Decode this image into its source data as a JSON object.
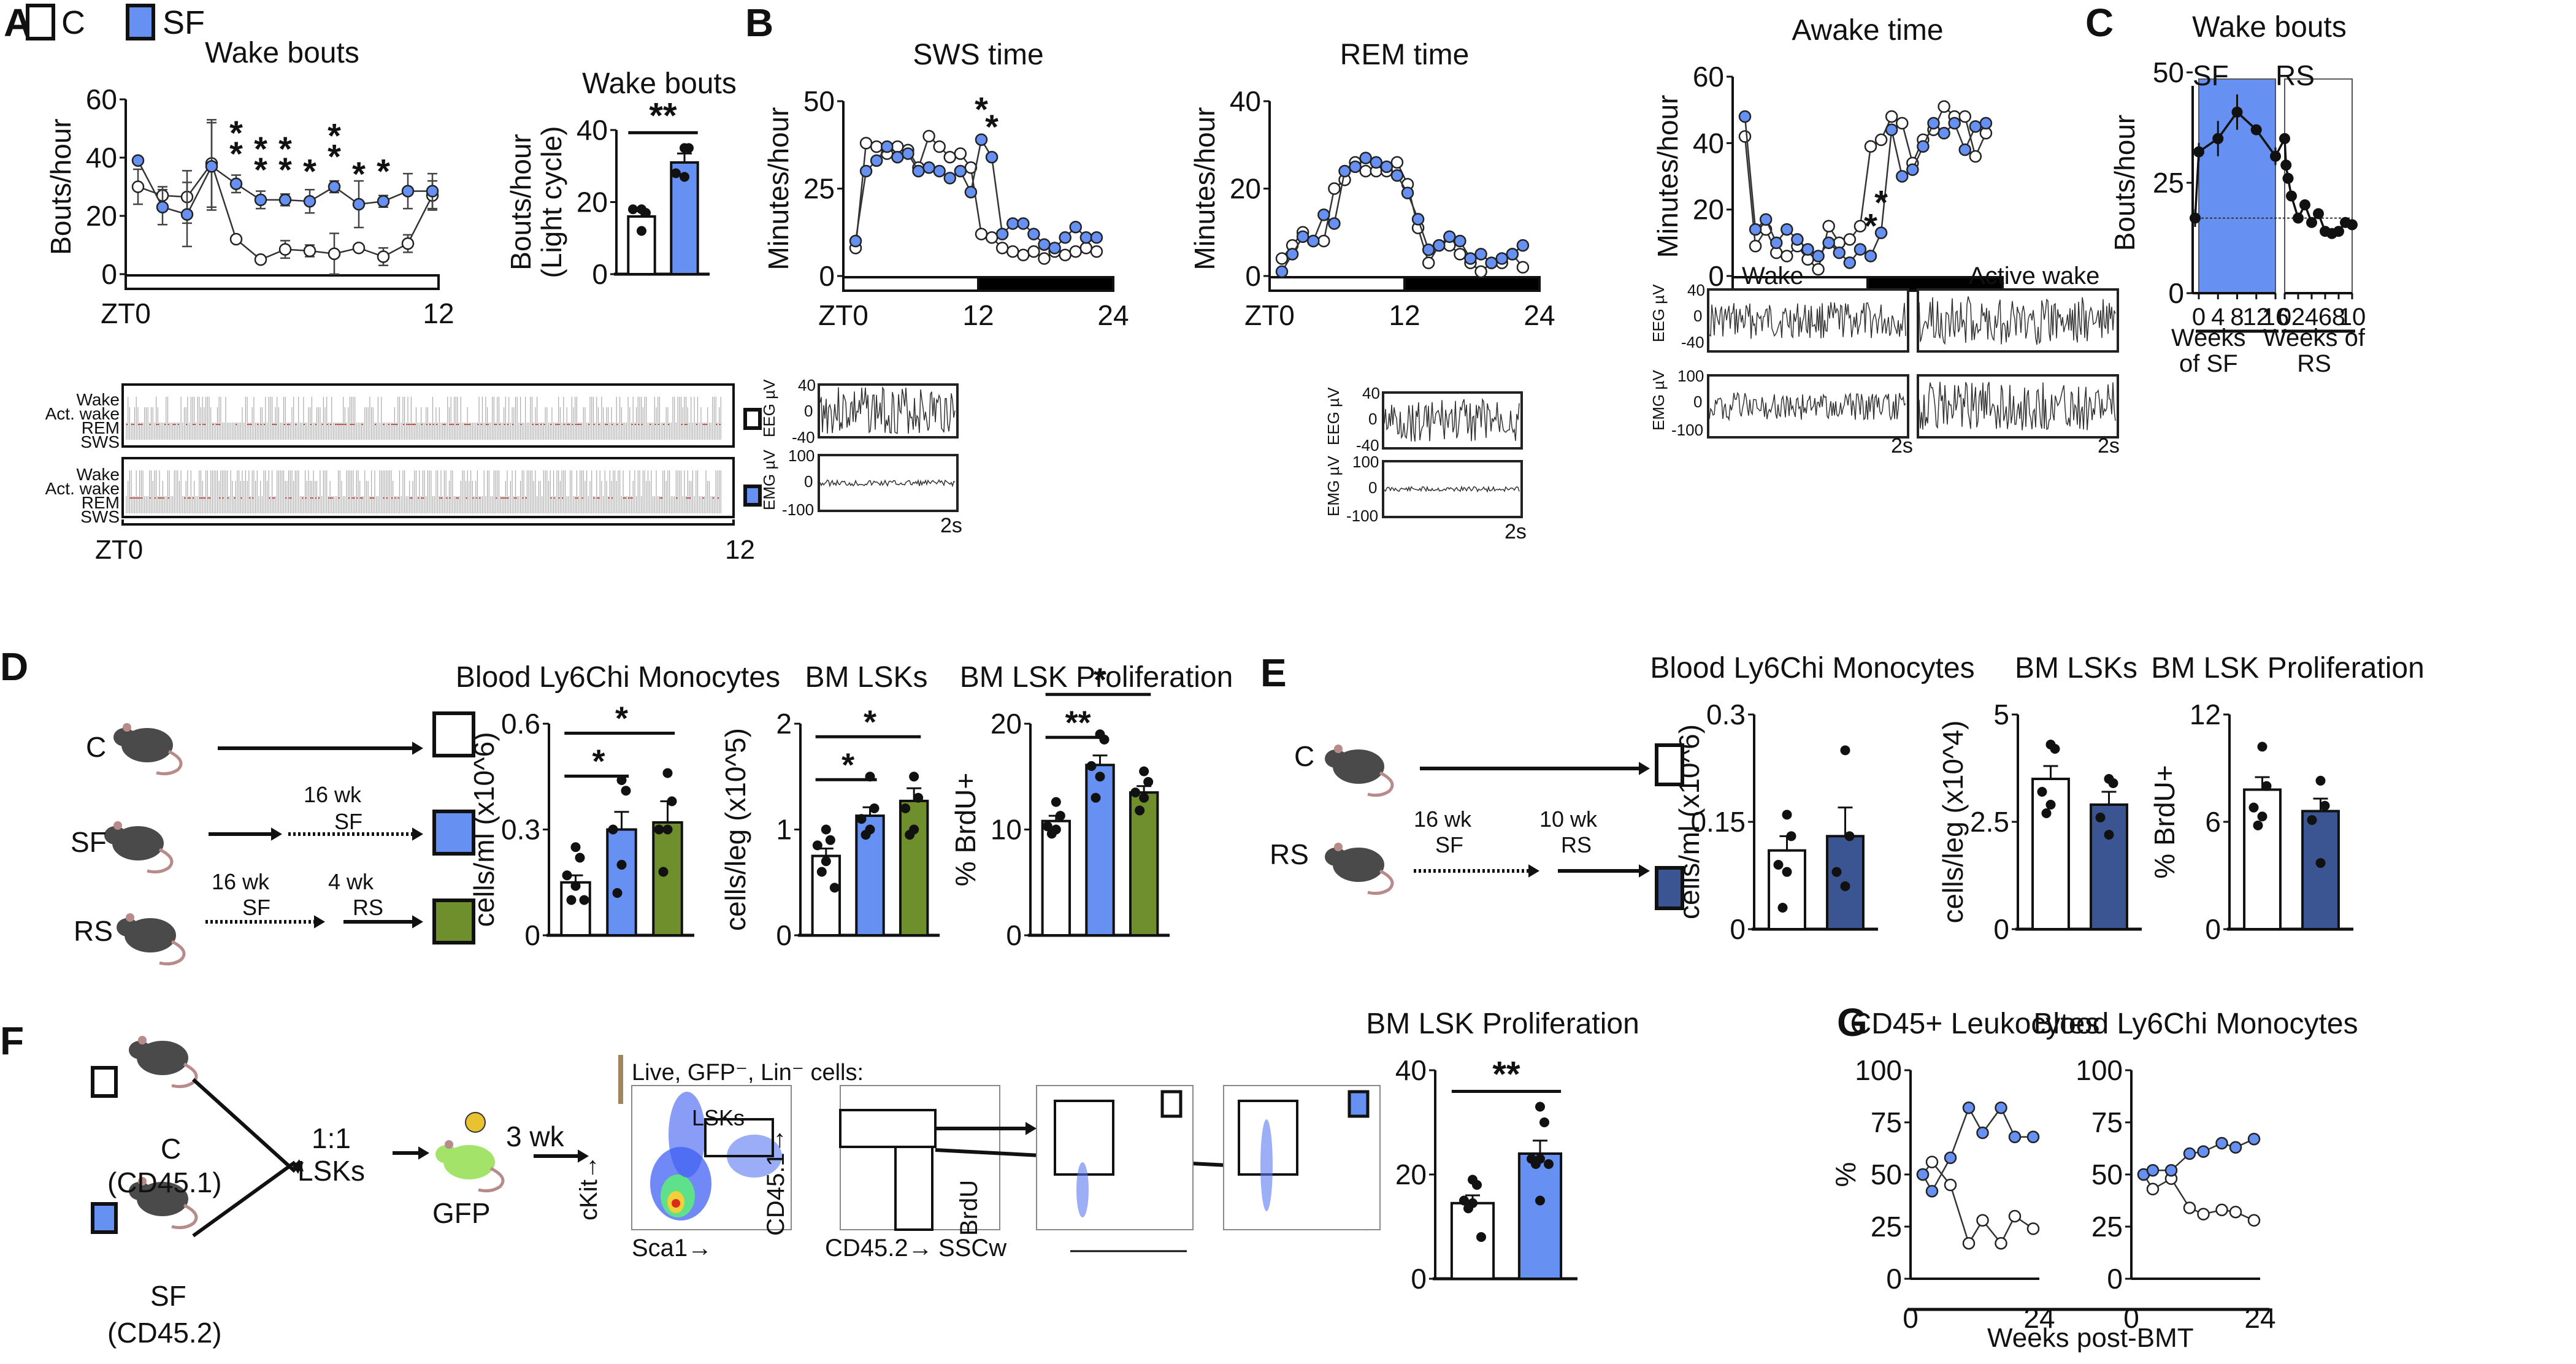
{
  "colors": {
    "control": "#ffffff",
    "sf": "#6690f2",
    "rs_green": "#6e8f2c",
    "rs_navy": "#3b5592",
    "axis": "#111111",
    "trace": "#333333",
    "rem_mark": "#c0392b"
  },
  "panels": {
    "A": {
      "label": "A",
      "legend": [
        {
          "name": "C",
          "color": "#ffffff"
        },
        {
          "name": "SF",
          "color": "#6690f2"
        }
      ],
      "hypnogram": {
        "y_labels": [
          "Wake",
          "Act. wake",
          "REM",
          "SWS"
        ],
        "x_labels": [
          "ZT0",
          "12"
        ]
      }
    },
    "B": {
      "label": "B",
      "traces": [
        {
          "title": "SWS",
          "eeg_label": "EEG µV",
          "emg_label": "EMG µV",
          "eeg_ticks": [
            "40",
            "0",
            "-40"
          ],
          "emg_ticks": [
            "100",
            "0",
            "-100"
          ],
          "time": "2s"
        },
        {
          "title": "REM",
          "eeg_label": "EEG µV",
          "emg_label": "EMG µV",
          "eeg_ticks": [
            "40",
            "0",
            "-40"
          ],
          "emg_ticks": [
            "100",
            "0",
            "-100"
          ],
          "time": "2s"
        },
        {
          "title": "Wake",
          "eeg_label": "EEG µV",
          "emg_label": "EMG µV",
          "eeg_ticks": [
            "40",
            "0",
            "-40"
          ],
          "emg_ticks": [
            "100",
            "0",
            "-100"
          ],
          "time": "2s",
          "subtitle": "Wake"
        },
        {
          "title": "Active wake",
          "time": "2s",
          "subtitle": "Active wake"
        }
      ]
    },
    "C": {
      "label": "C",
      "sf_label": "SF",
      "rs_label": "RS",
      "xgroup1": "Weeks\nof SF",
      "xgroup2": "Weeks of\nRS"
    },
    "D": {
      "label": "D",
      "groups": [
        {
          "name": "C",
          "note_top": "",
          "note_bottom": ""
        },
        {
          "name": "SF",
          "seg1_top": "16 wk",
          "seg1_bottom": "SF"
        },
        {
          "name": "RS",
          "seg1_top": "16 wk",
          "seg1_bottom": "SF",
          "seg2_top": "4 wk",
          "seg2_bottom": "RS"
        }
      ]
    },
    "E": {
      "label": "E",
      "groups": [
        {
          "name": "C"
        },
        {
          "name": "RS",
          "seg1_top": "16 wk",
          "seg1_bottom": "SF",
          "seg2_top": "10 wk",
          "seg2_bottom": "RS"
        }
      ]
    },
    "F": {
      "label": "F",
      "donors": [
        {
          "name": "C",
          "sub": "(CD45.1)"
        },
        {
          "name": "SF",
          "sub": "(CD45.2)"
        }
      ],
      "mix_label": "1:1\nLSKs",
      "recipient": "GFP",
      "wait": "3 wk",
      "gate_title": "Live, GFP⁻, Lin⁻ cells:",
      "gate_lsk": "LSKs",
      "axes": {
        "ckit": "cKit→",
        "sca1": "Sca1→",
        "cd451": "CD45.1→",
        "cd452": "CD45.2→",
        "brdu": "BrdU",
        "sscw": "SSCw"
      }
    },
    "G": {
      "label": "G",
      "shared_xlabel": "Weeks post-BMT"
    }
  },
  "chart_data": [
    {
      "id": "A-line",
      "type": "line",
      "title": "Wake bouts",
      "xlabel": "",
      "ylabel": "Bouts/hour",
      "x_tick_labels": [
        "ZT0",
        "12"
      ],
      "ylim": [
        0,
        60
      ],
      "yticks": [
        0,
        20,
        40,
        60
      ],
      "x": [
        0,
        1,
        2,
        3,
        4,
        5,
        6,
        7,
        8,
        9,
        10,
        11,
        12
      ],
      "series": [
        {
          "name": "C",
          "values": [
            30,
            27,
            26.5,
            38,
            12,
            5,
            8.5,
            8,
            7,
            9,
            6,
            10.5,
            27
          ],
          "err": [
            6,
            3,
            9,
            15,
            1,
            0,
            3,
            2,
            7,
            0,
            3,
            3,
            5
          ]
        },
        {
          "name": "SF",
          "values": [
            39,
            23,
            20.5,
            37,
            31,
            25.5,
            25.5,
            25,
            30,
            24,
            25,
            28.5,
            28.5
          ],
          "err": [
            0,
            6,
            11,
            15,
            3,
            3,
            2,
            4,
            2,
            8,
            2,
            6,
            6
          ]
        }
      ],
      "annotations": [
        "**",
        "**",
        "**",
        "*",
        "**",
        "*",
        "*"
      ],
      "annotation_x": [
        4,
        5,
        6,
        7,
        8,
        9,
        10
      ],
      "light_bar": "light"
    },
    {
      "id": "A-bar",
      "type": "bar",
      "title": "Wake bouts",
      "ylabel": "Bouts/hour\n(Light cycle)",
      "categories": [
        "C",
        "SF"
      ],
      "values": [
        16,
        31
      ],
      "err": [
        1.5,
        2.5
      ],
      "ylim": [
        0,
        40
      ],
      "yticks": [
        0,
        20,
        40
      ],
      "points": [
        [
          18,
          17,
          18,
          12
        ],
        [
          35,
          35,
          28,
          27
        ]
      ],
      "significance": "**"
    },
    {
      "id": "B-sws",
      "type": "line",
      "title": "SWS time",
      "ylabel": "Minutes/hour",
      "ylim": [
        0,
        50
      ],
      "yticks": [
        0,
        25,
        50
      ],
      "x_tick_labels": [
        "ZT0",
        "12",
        "24"
      ],
      "xlim": [
        0,
        24
      ],
      "x": [
        0,
        1,
        2,
        3,
        4,
        5,
        6,
        7,
        8,
        9,
        10,
        11,
        12,
        13,
        14,
        15,
        16,
        17,
        18,
        19,
        20,
        21,
        22,
        23
      ],
      "series": [
        {
          "name": "C",
          "values": [
            8,
            38,
            37,
            35,
            37,
            36,
            31,
            40,
            37,
            34,
            35,
            31,
            12,
            11,
            8,
            7,
            6,
            7,
            5,
            7,
            6,
            7,
            8,
            7
          ]
        },
        {
          "name": "SF",
          "values": [
            10,
            30,
            33,
            37,
            34,
            35,
            30,
            31,
            30,
            28,
            30,
            24,
            39,
            34,
            12,
            15,
            15,
            12,
            9,
            8,
            11,
            14,
            11,
            11
          ]
        }
      ],
      "annotations": [
        "*",
        "*"
      ],
      "annotation_x": [
        12,
        13
      ],
      "light_bar": "light-dark"
    },
    {
      "id": "B-rem",
      "type": "line",
      "title": "REM time",
      "ylabel": "Minutes/hour",
      "ylim": [
        0,
        40
      ],
      "yticks": [
        0,
        20,
        40
      ],
      "x_tick_labels": [
        "ZT0",
        "12",
        "24"
      ],
      "xlim": [
        0,
        24
      ],
      "x": [
        0,
        1,
        2,
        3,
        4,
        5,
        6,
        7,
        8,
        9,
        10,
        11,
        12,
        13,
        14,
        15,
        16,
        17,
        18,
        19,
        20,
        21,
        22,
        23
      ],
      "series": [
        {
          "name": "C",
          "values": [
            4,
            7,
            10,
            8,
            8,
            20,
            22,
            26,
            24,
            24,
            24,
            26,
            21,
            11,
            3,
            7,
            7,
            5,
            3,
            1,
            3,
            3,
            5,
            2
          ]
        },
        {
          "name": "SF",
          "values": [
            1,
            5,
            9,
            8,
            14,
            12,
            24,
            25,
            27,
            26,
            25,
            23,
            19,
            13,
            6,
            7,
            9,
            8,
            4,
            5,
            3,
            4,
            5,
            7
          ]
        }
      ],
      "light_bar": "light-dark"
    },
    {
      "id": "B-awake",
      "type": "line",
      "title": "Awake time",
      "ylabel": "Minutes/hour",
      "ylim": [
        0,
        60
      ],
      "yticks": [
        0,
        20,
        40,
        60
      ],
      "x_tick_labels": [
        "ZT0",
        "12",
        "24"
      ],
      "xlim": [
        0,
        24
      ],
      "x": [
        0,
        1,
        2,
        3,
        4,
        5,
        6,
        7,
        8,
        9,
        10,
        11,
        12,
        13,
        14,
        15,
        16,
        17,
        18,
        19,
        20,
        21,
        22,
        23
      ],
      "series": [
        {
          "name": "C",
          "values": [
            42,
            9,
            14,
            7,
            6,
            9,
            5,
            2,
            15,
            10,
            11,
            15,
            39,
            41,
            48,
            46,
            34,
            41,
            44,
            51,
            48,
            48,
            36,
            43
          ]
        },
        {
          "name": "SF",
          "values": [
            48,
            14,
            17,
            10,
            14,
            11,
            8,
            6,
            10,
            7,
            4,
            8,
            6,
            13,
            44,
            30,
            32,
            39,
            46,
            43,
            46,
            38,
            45,
            46
          ]
        }
      ],
      "annotations": [
        "*",
        "*"
      ],
      "annotation_x": [
        12,
        13
      ],
      "light_bar": "light-dark"
    },
    {
      "id": "C-line",
      "type": "line",
      "title": "Wake bouts",
      "ylabel": "Bouts/hour",
      "ylim": [
        0,
        50
      ],
      "yticks": [
        0,
        25,
        50
      ],
      "segments": [
        {
          "name": "Weeks of SF",
          "x_ticks": [
            "0",
            "4",
            "8",
            "12",
            "16"
          ],
          "x": [
            -1,
            0,
            4,
            8,
            12,
            16
          ],
          "values": [
            17,
            32,
            35,
            41,
            37,
            31
          ],
          "err": [
            2,
            2,
            4,
            4,
            0,
            2
          ]
        },
        {
          "name": "Weeks of RS",
          "x_ticks": [
            "0",
            "2",
            "4",
            "6",
            "8",
            "10"
          ],
          "x": [
            0,
            0.2,
            0.5,
            1,
            2,
            3,
            4,
            5,
            6,
            7,
            8,
            9,
            10
          ],
          "values": [
            35,
            29,
            26,
            22,
            17,
            20,
            16,
            18,
            14,
            13.5,
            14,
            16,
            15.5
          ]
        }
      ],
      "baseline": 17
    },
    {
      "id": "D-mono",
      "type": "bar",
      "title": "Blood Ly6Chi Monocytes",
      "ylabel": "cells/ml (x10^6)",
      "categories": [
        "C",
        "SF",
        "RS"
      ],
      "values": [
        0.15,
        0.3,
        0.32
      ],
      "err": [
        0.02,
        0.05,
        0.06
      ],
      "ylim": [
        0,
        0.6
      ],
      "yticks": [
        "0",
        "0.3",
        "0.6"
      ],
      "points": [
        [
          0.25,
          0.22,
          0.17,
          0.14,
          0.1,
          0.1
        ],
        [
          0.44,
          0.41,
          0.3,
          0.2,
          0.12
        ],
        [
          0.46,
          0.38,
          0.3,
          0.3,
          0.18
        ]
      ],
      "significance": [
        {
          "pair": [
            "C",
            "SF"
          ],
          "label": "*"
        },
        {
          "pair": [
            "C",
            "RS"
          ],
          "label": "*"
        }
      ]
    },
    {
      "id": "D-lsk",
      "type": "bar",
      "title": "BM LSKs",
      "ylabel": "cells/leg (x10^5)",
      "categories": [
        "C",
        "SF",
        "RS"
      ],
      "values": [
        0.75,
        1.13,
        1.27
      ],
      "err": [
        0.07,
        0.08,
        0.12
      ],
      "ylim": [
        0,
        2
      ],
      "yticks": [
        "0",
        "1",
        "2"
      ],
      "points": [
        [
          1.0,
          0.9,
          0.85,
          0.7,
          0.6,
          0.45
        ],
        [
          1.5,
          1.2,
          1.1,
          1.0,
          0.95
        ],
        [
          1.5,
          1.3,
          1.2,
          1.0,
          0.95
        ]
      ],
      "significance": [
        {
          "pair": [
            "C",
            "SF"
          ],
          "label": "*"
        },
        {
          "pair": [
            "C",
            "RS"
          ],
          "label": "*"
        }
      ]
    },
    {
      "id": "D-prolif",
      "type": "bar",
      "title": "BM LSK Proliferation",
      "ylabel": "% BrdU+",
      "categories": [
        "C",
        "SF",
        "RS"
      ],
      "values": [
        10.8,
        16.1,
        13.5
      ],
      "err": [
        0.5,
        0.9,
        0.6
      ],
      "ylim": [
        0,
        20
      ],
      "yticks": [
        "0",
        "10",
        "20"
      ],
      "points": [
        [
          12.6,
          11.3,
          10.3,
          10.0,
          9.6
        ],
        [
          19.0,
          18.5,
          16.0,
          15.0,
          13.0
        ],
        [
          15.5,
          14.5,
          13.5,
          13.0,
          11.8
        ]
      ],
      "significance": [
        {
          "pair": [
            "C",
            "SF"
          ],
          "label": "**"
        },
        {
          "pair": [
            "C",
            "RS"
          ],
          "label": "*"
        }
      ]
    },
    {
      "id": "E-mono",
      "type": "bar",
      "title": "Blood Ly6Chi Monocytes",
      "ylabel": "cells/ml (x10^6)",
      "categories": [
        "C",
        "RS"
      ],
      "values": [
        0.11,
        0.13
      ],
      "err": [
        0.02,
        0.04
      ],
      "ylim": [
        0,
        0.3
      ],
      "yticks": [
        "0",
        "0.15",
        "0.3"
      ],
      "points": [
        [
          0.16,
          0.13,
          0.09,
          0.08,
          0.03
        ],
        [
          0.25,
          0.13,
          0.08,
          0.06
        ]
      ]
    },
    {
      "id": "E-lsk",
      "type": "bar",
      "title": "BM LSKs",
      "ylabel": "cells/leg (x10^4)",
      "categories": [
        "C",
        "RS"
      ],
      "values": [
        3.5,
        2.9
      ],
      "err": [
        0.3,
        0.3
      ],
      "ylim": [
        0,
        5
      ],
      "yticks": [
        "0",
        "2.5",
        "5"
      ],
      "points": [
        [
          4.3,
          4.2,
          3.2,
          2.9,
          2.7
        ],
        [
          3.5,
          3.4,
          2.6,
          2.2
        ]
      ]
    },
    {
      "id": "E-prolif",
      "type": "bar",
      "title": "BM LSK Proliferation",
      "ylabel": "% BrdU+",
      "categories": [
        "C",
        "RS"
      ],
      "values": [
        7.8,
        6.6
      ],
      "err": [
        0.7,
        0.7
      ],
      "ylim": [
        0,
        12
      ],
      "yticks": [
        "0",
        "6",
        "12"
      ],
      "points": [
        [
          10.2,
          8.0,
          6.8,
          6.3,
          5.8
        ],
        [
          8.3,
          6.9,
          6.1,
          3.7
        ]
      ]
    },
    {
      "id": "F-prolif",
      "type": "bar",
      "title": "BM LSK Proliferation",
      "ylabel": "% BrdU+",
      "categories": [
        "C",
        "SF"
      ],
      "values": [
        14.5,
        24.0
      ],
      "err": [
        1.5,
        2.5
      ],
      "ylim": [
        0,
        40
      ],
      "yticks": [
        "0",
        "20",
        "40"
      ],
      "points": [
        [
          19,
          18,
          15,
          14.5,
          13.5,
          8
        ],
        [
          33,
          30,
          23,
          23,
          22,
          22,
          15
        ]
      ],
      "significance": "**"
    },
    {
      "id": "G-leuko",
      "type": "line",
      "title": "CD45+ Leukocytes",
      "ylabel": "%",
      "ylim": [
        0,
        100
      ],
      "yticks": [
        0,
        25,
        50,
        75,
        100
      ],
      "x_tick_labels": [
        "0",
        "24"
      ],
      "xlim": [
        0,
        24
      ],
      "x": [
        0,
        2,
        6,
        10,
        13,
        17,
        20,
        24
      ],
      "series": [
        {
          "name": "C",
          "values": [
            50,
            56,
            45,
            17,
            28,
            17,
            30,
            24
          ]
        },
        {
          "name": "SF",
          "values": [
            50,
            42,
            58,
            82,
            70,
            82,
            68,
            68
          ]
        }
      ]
    },
    {
      "id": "G-mono",
      "type": "line",
      "title": "Blood Ly6Chi Monocytes",
      "ylabel": "",
      "ylim": [
        0,
        100
      ],
      "yticks": [
        0,
        25,
        50,
        75,
        100
      ],
      "x_tick_labels": [
        "0",
        "24"
      ],
      "xlim": [
        0,
        24
      ],
      "x": [
        0,
        2,
        6,
        10,
        13,
        17,
        20,
        24
      ],
      "series": [
        {
          "name": "C",
          "values": [
            50,
            43,
            48,
            34,
            31,
            33,
            32,
            28
          ]
        },
        {
          "name": "SF",
          "values": [
            50,
            52,
            52,
            60,
            61,
            65,
            63,
            67
          ]
        }
      ]
    }
  ]
}
